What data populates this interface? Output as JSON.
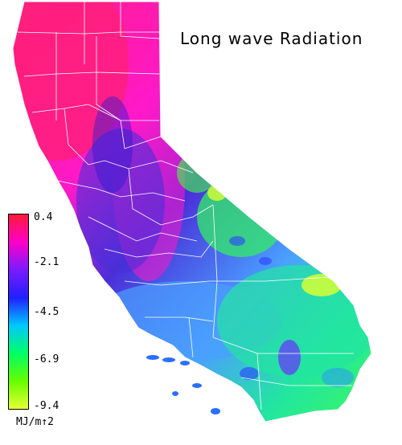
{
  "map": {
    "title": "Long wave Radiation",
    "region": "California",
    "colors": {
      "background": "#ffffff",
      "boundary_lines": "#ffffff",
      "north_coast": "#ff1f7a",
      "sierra_high": "#ff19c8",
      "central_valley": "#4a2fd9",
      "coast_south": "#4aa0ff",
      "desert": "#22e6a0",
      "desert_green": "#44ff44",
      "desert_yellow": "#d6ff33"
    }
  },
  "legend": {
    "tick_labels": [
      "0.4",
      "-2.1",
      "-4.5",
      "-6.9",
      "-9.4"
    ],
    "units": "MJ/m↑2",
    "gradient_stops": [
      "#ff1a3a",
      "#ff00c8",
      "#7a1aff",
      "#2020ff",
      "#00c8ff",
      "#00ff66",
      "#66ff00",
      "#e6ff33"
    ]
  }
}
